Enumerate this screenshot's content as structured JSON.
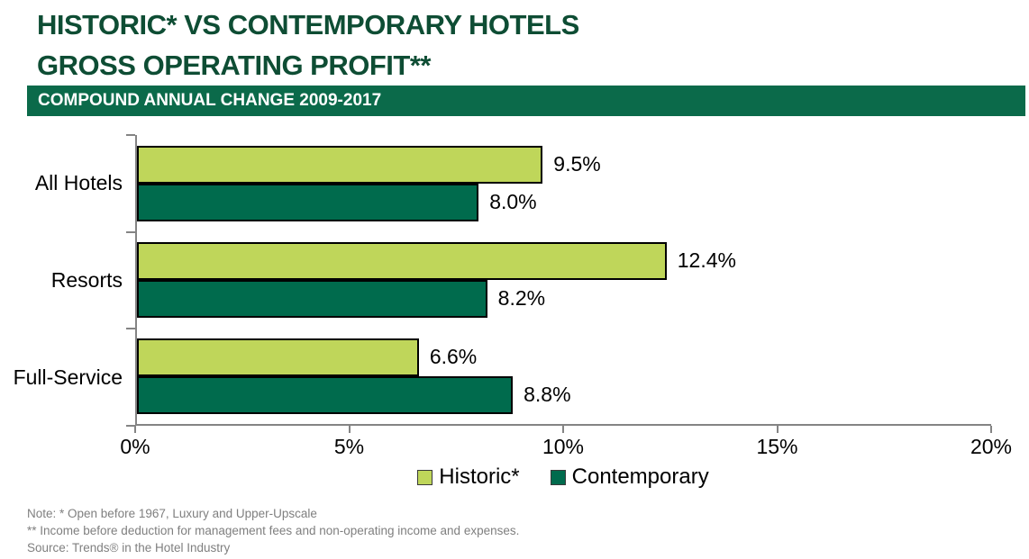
{
  "title": {
    "line1": "HISTORIC* VS CONTEMPORARY HOTELS",
    "line2": "GROSS OPERATING PROFIT**"
  },
  "banner": {
    "text": "COMPOUND ANNUAL CHANGE 2009-2017"
  },
  "chart_data": {
    "type": "bar",
    "orientation": "horizontal",
    "title": "Historic vs Contemporary Hotels Gross Operating Profit, Compound Annual Change 2009-2017",
    "categories": [
      "All Hotels",
      "Resorts",
      "Full-Service"
    ],
    "series": [
      {
        "name": "Historic*",
        "color": "#BFD65A",
        "values": [
          9.5,
          12.4,
          6.6
        ]
      },
      {
        "name": "Contemporary",
        "color": "#006B4D",
        "values": [
          8.0,
          8.2,
          8.8
        ]
      }
    ],
    "value_suffix": "%",
    "xlabel": "",
    "ylabel": "",
    "xlim": [
      0,
      20
    ],
    "x_ticks": [
      "0%",
      "5%",
      "10%",
      "15%",
      "20%"
    ],
    "grid": false,
    "legend_position": "bottom"
  },
  "colors": {
    "title_text": "#0E4D34",
    "banner_bg": "#0B6A4A",
    "banner_text": "#FFFFFF",
    "axis": "#848484",
    "bar_border": "#000000",
    "footnote_text": "#7F7F7F"
  },
  "footnotes": [
    "Note: *  Open before 1967, Luxury and Upper-Upscale",
    "**  Income before deduction for management fees and non-operating income and expenses.",
    "Source: Trends® in the Hotel Industry"
  ]
}
